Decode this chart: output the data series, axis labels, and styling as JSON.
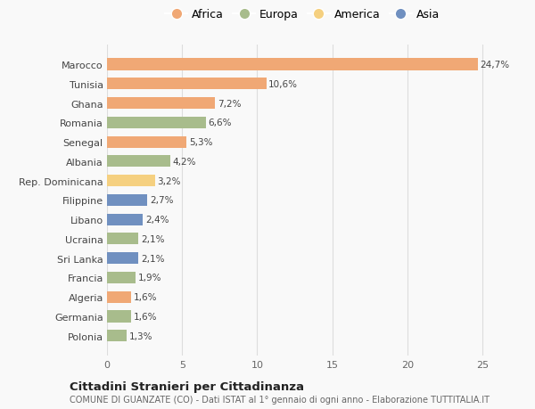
{
  "countries": [
    "Marocco",
    "Tunisia",
    "Ghana",
    "Romania",
    "Senegal",
    "Albania",
    "Rep. Dominicana",
    "Filippine",
    "Libano",
    "Ucraina",
    "Sri Lanka",
    "Francia",
    "Algeria",
    "Germania",
    "Polonia"
  ],
  "values": [
    24.7,
    10.6,
    7.2,
    6.6,
    5.3,
    4.2,
    3.2,
    2.7,
    2.4,
    2.1,
    2.1,
    1.9,
    1.6,
    1.6,
    1.3
  ],
  "labels": [
    "24,7%",
    "10,6%",
    "7,2%",
    "6,6%",
    "5,3%",
    "4,2%",
    "3,2%",
    "2,7%",
    "2,4%",
    "2,1%",
    "2,1%",
    "1,9%",
    "1,6%",
    "1,6%",
    "1,3%"
  ],
  "continents": [
    "Africa",
    "Africa",
    "Africa",
    "Europa",
    "Africa",
    "Europa",
    "America",
    "Asia",
    "Asia",
    "Europa",
    "Asia",
    "Europa",
    "Africa",
    "Europa",
    "Europa"
  ],
  "continent_colors": {
    "Africa": "#F0A875",
    "Europa": "#A8BC8C",
    "America": "#F5D080",
    "Asia": "#7090C0"
  },
  "legend_order": [
    "Africa",
    "Europa",
    "America",
    "Asia"
  ],
  "title": "Cittadini Stranieri per Cittadinanza",
  "subtitle": "COMUNE DI GUANZATE (CO) - Dati ISTAT al 1° gennaio di ogni anno - Elaborazione TUTTITALIA.IT",
  "xlim": [
    0,
    26
  ],
  "xticks": [
    0,
    5,
    10,
    15,
    20,
    25
  ],
  "background_color": "#f9f9f9",
  "grid_color": "#dddddd",
  "bar_height": 0.6
}
